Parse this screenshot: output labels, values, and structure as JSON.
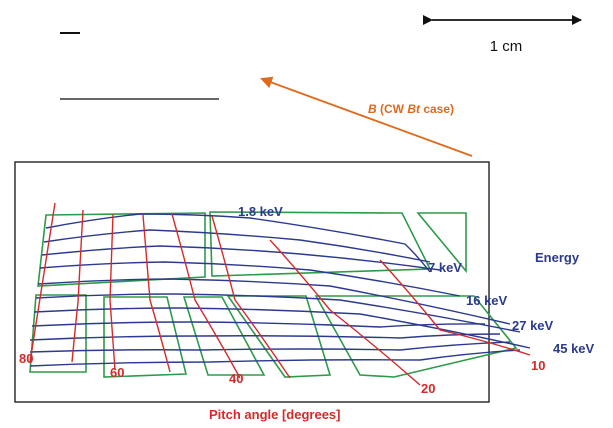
{
  "scale_bar": {
    "label": "1 cm"
  },
  "field": {
    "label_symbol": "B",
    "label_rest": " (CW ",
    "label_symbol2": "Bt",
    "label_end": " case)"
  },
  "axis": {
    "energy_title": "Energy",
    "pitch_title": "Pitch angle [degrees]"
  },
  "energy_labels": [
    "1.8 keV",
    "7 keV",
    "16 keV",
    "27 keV",
    "45 keV"
  ],
  "pitch_labels": [
    "80",
    "60",
    "40",
    "20",
    "10"
  ],
  "colors": {
    "energy_lines": "#2b3a8f",
    "pitch_lines": "#d62a2a",
    "detector_outlines": "#2e9b4a",
    "field_arrow": "#e06a1c",
    "frame": "#222222"
  }
}
